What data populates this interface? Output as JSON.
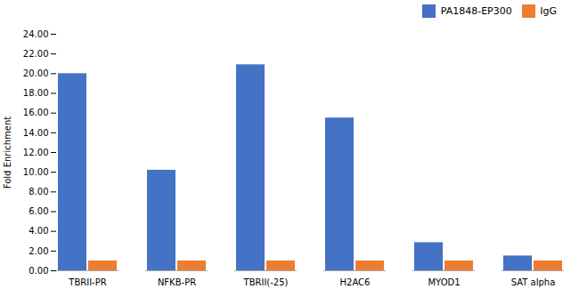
{
  "chart_data": {
    "type": "bar",
    "categories": [
      "TBRII-PR",
      "NFKB-PR",
      "TBRII(-25)",
      "H2AC6",
      "MYOD1",
      "SAT alpha"
    ],
    "series": [
      {
        "name": "PA1848-EP300",
        "color": "#4472C4",
        "values": [
          20.0,
          10.2,
          20.9,
          15.5,
          2.85,
          1.5
        ]
      },
      {
        "name": "IgG",
        "color": "#ED7D31",
        "values": [
          1.0,
          1.0,
          1.0,
          1.0,
          1.0,
          1.0
        ]
      }
    ],
    "ylabel": "Fold Enrichment",
    "ylim": [
      0,
      24
    ],
    "yticks": [
      {
        "value": 0,
        "label": "0.00"
      },
      {
        "value": 2,
        "label": "2.00"
      },
      {
        "value": 4,
        "label": "4.00"
      },
      {
        "value": 6,
        "label": "6.00"
      },
      {
        "value": 8,
        "label": "8.00"
      },
      {
        "value": 10,
        "label": "10.00"
      },
      {
        "value": 12,
        "label": "12.00"
      },
      {
        "value": 14,
        "label": "14.00"
      },
      {
        "value": 16,
        "label": "16.00"
      },
      {
        "value": 18,
        "label": "18.00"
      },
      {
        "value": 20,
        "label": "20.00"
      },
      {
        "value": 22,
        "label": "22.00"
      },
      {
        "value": 24,
        "label": "24.00"
      }
    ],
    "legend": "upper right",
    "grid": false
  }
}
